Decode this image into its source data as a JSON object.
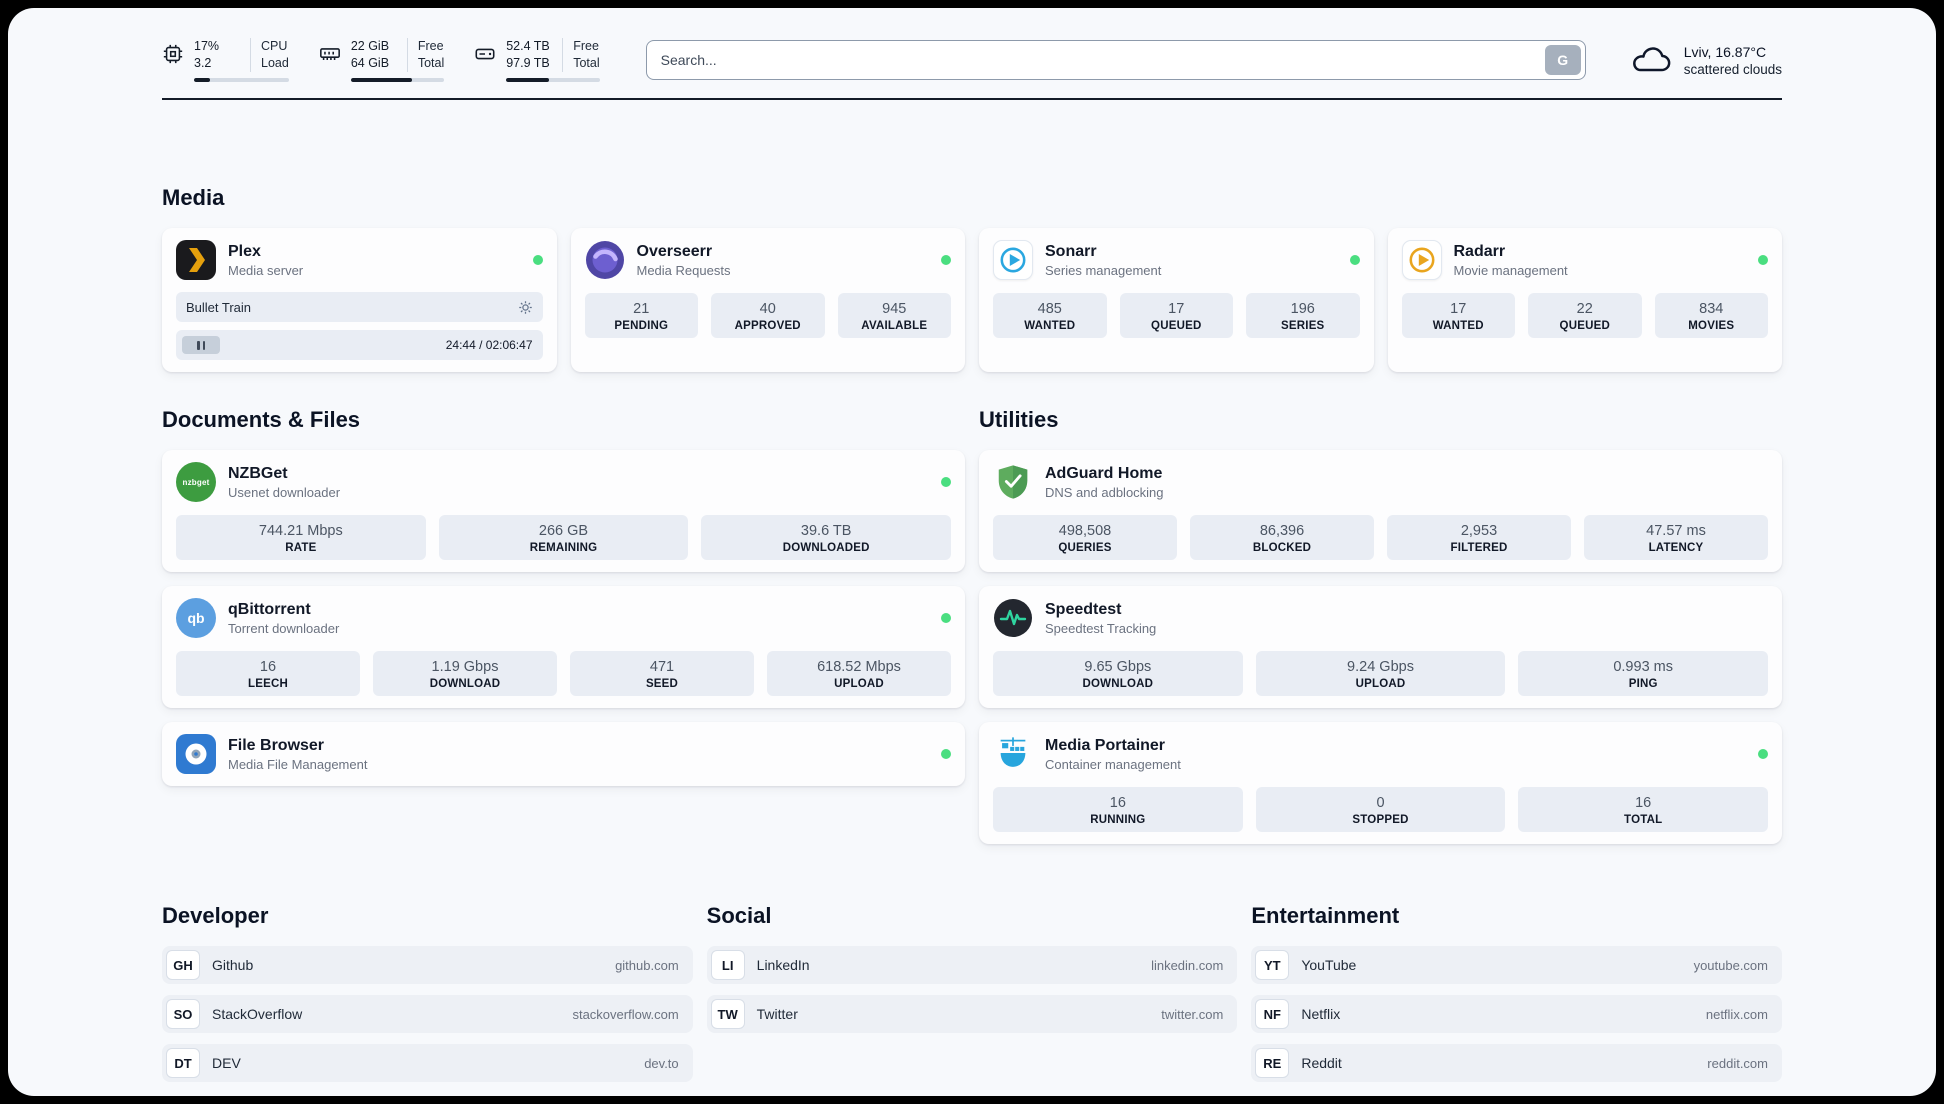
{
  "colors": {
    "status_online": "#4ade80",
    "plex_accent": "#e5a00d",
    "progress_fill": "#141c28",
    "page_background": "#f7f9fc"
  },
  "icons": {
    "cpu-icon": "chip outline",
    "ram-icon": "memory-module outline",
    "disk-icon": "hard-drive outline",
    "search-engine-button": "G",
    "weather-icon": "cloud outline",
    "settings-icon": "gear",
    "pause-icon": "pause bars",
    "plex-icon": "dark tile with yellow chevron",
    "overseerr-icon": "purple swirl circle",
    "sonarr-icon": "blue play circle on white tile",
    "radarr-icon": "gold play circle on white tile",
    "nzbget-icon": "green circle with nzbget text",
    "qbittorrent-icon": "blue circle with qb text",
    "filebrowser-icon": "blue tile with white disc",
    "adguard-icon": "green shield with check",
    "speedtest-icon": "dark circle with green pulse line",
    "portainer-icon": "blue crane and containers"
  },
  "header": {
    "cpu": {
      "value_top": "17%",
      "value_bottom": "3.2",
      "label_top": "CPU",
      "label_bottom": "Load",
      "percent": 17
    },
    "ram": {
      "value_top": "22 GiB",
      "value_bottom": "64 GiB",
      "label_top": "Free",
      "label_bottom": "Total",
      "percent": 66
    },
    "disk": {
      "value_top": "52.4 TB",
      "value_bottom": "97.9 TB",
      "label_top": "Free",
      "label_bottom": "Total",
      "percent": 46
    },
    "search": {
      "placeholder": "Search...",
      "button": "G"
    },
    "weather": {
      "location": "Lviv, 16.87°C",
      "condition": "scattered clouds"
    }
  },
  "media": {
    "title": "Media",
    "plex": {
      "name": "Plex",
      "subtitle": "Media server",
      "player_title": "Bullet Train",
      "player_time": "24:44 / 02:06:47"
    },
    "overseerr": {
      "name": "Overseerr",
      "subtitle": "Media Requests",
      "stats": [
        {
          "value": "21",
          "label": "PENDING"
        },
        {
          "value": "40",
          "label": "APPROVED"
        },
        {
          "value": "945",
          "label": "AVAILABLE"
        }
      ]
    },
    "sonarr": {
      "name": "Sonarr",
      "subtitle": "Series management",
      "stats": [
        {
          "value": "485",
          "label": "WANTED"
        },
        {
          "value": "17",
          "label": "QUEUED"
        },
        {
          "value": "196",
          "label": "SERIES"
        }
      ]
    },
    "radarr": {
      "name": "Radarr",
      "subtitle": "Movie management",
      "stats": [
        {
          "value": "17",
          "label": "WANTED"
        },
        {
          "value": "22",
          "label": "QUEUED"
        },
        {
          "value": "834",
          "label": "MOVIES"
        }
      ]
    }
  },
  "documents": {
    "title": "Documents & Files",
    "nzbget": {
      "name": "NZBGet",
      "subtitle": "Usenet downloader",
      "icon_text": "nzbget",
      "stats": [
        {
          "value": "744.21 Mbps",
          "label": "RATE"
        },
        {
          "value": "266 GB",
          "label": "REMAINING"
        },
        {
          "value": "39.6 TB",
          "label": "DOWNLOADED"
        }
      ]
    },
    "qbittorrent": {
      "name": "qBittorrent",
      "subtitle": "Torrent downloader",
      "icon_text": "qb",
      "stats": [
        {
          "value": "16",
          "label": "LEECH"
        },
        {
          "value": "1.19 Gbps",
          "label": "DOWNLOAD"
        },
        {
          "value": "471",
          "label": "SEED"
        },
        {
          "value": "618.52 Mbps",
          "label": "UPLOAD"
        }
      ]
    },
    "filebrowser": {
      "name": "File Browser",
      "subtitle": "Media File Management"
    }
  },
  "utilities": {
    "title": "Utilities",
    "adguard": {
      "name": "AdGuard Home",
      "subtitle": "DNS and adblocking",
      "stats": [
        {
          "value": "498,508",
          "label": "QUERIES"
        },
        {
          "value": "86,396",
          "label": "BLOCKED"
        },
        {
          "value": "2,953",
          "label": "FILTERED"
        },
        {
          "value": "47.57 ms",
          "label": "LATENCY"
        }
      ]
    },
    "speedtest": {
      "name": "Speedtest",
      "subtitle": "Speedtest Tracking",
      "stats": [
        {
          "value": "9.65 Gbps",
          "label": "DOWNLOAD"
        },
        {
          "value": "9.24 Gbps",
          "label": "UPLOAD"
        },
        {
          "value": "0.993 ms",
          "label": "PING"
        }
      ]
    },
    "portainer": {
      "name": "Media Portainer",
      "subtitle": "Container management",
      "stats": [
        {
          "value": "16",
          "label": "RUNNING"
        },
        {
          "value": "0",
          "label": "STOPPED"
        },
        {
          "value": "16",
          "label": "TOTAL"
        }
      ]
    }
  },
  "bookmarks": {
    "developer": {
      "title": "Developer",
      "items": [
        {
          "abbr": "GH",
          "name": "Github",
          "url": "github.com"
        },
        {
          "abbr": "SO",
          "name": "StackOverflow",
          "url": "stackoverflow.com"
        },
        {
          "abbr": "DT",
          "name": "DEV",
          "url": "dev.to"
        }
      ]
    },
    "social": {
      "title": "Social",
      "items": [
        {
          "abbr": "LI",
          "name": "LinkedIn",
          "url": "linkedin.com"
        },
        {
          "abbr": "TW",
          "name": "Twitter",
          "url": "twitter.com"
        }
      ]
    },
    "entertainment": {
      "title": "Entertainment",
      "items": [
        {
          "abbr": "YT",
          "name": "YouTube",
          "url": "youtube.com"
        },
        {
          "abbr": "NF",
          "name": "Netflix",
          "url": "netflix.com"
        },
        {
          "abbr": "RE",
          "name": "Reddit",
          "url": "reddit.com"
        }
      ]
    }
  }
}
